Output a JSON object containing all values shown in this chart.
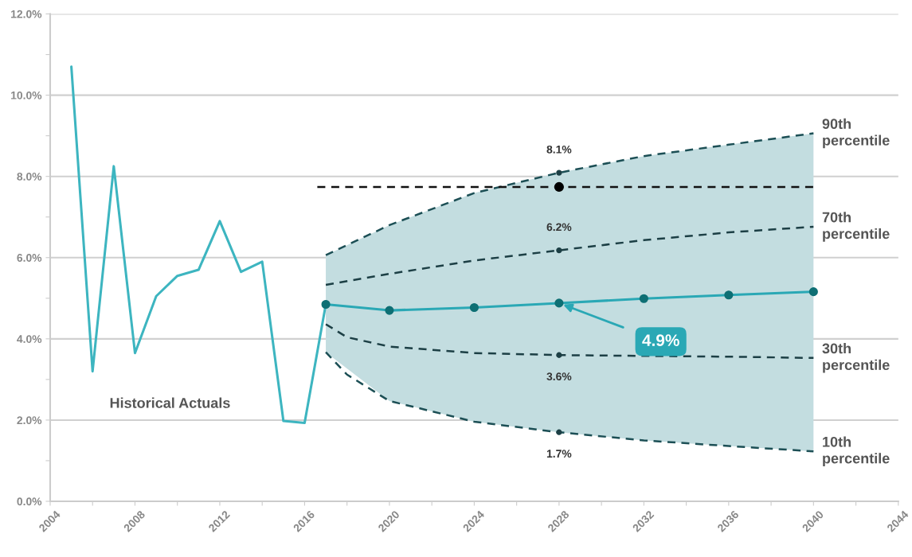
{
  "chart_data": {
    "type": "line",
    "xlim": [
      2004,
      2044
    ],
    "xticks": [
      2004,
      {
        "value": 2006,
        "label": null
      },
      2008,
      {
        "value": 2010,
        "label": null
      },
      2012,
      {
        "value": 2014,
        "label": null
      },
      2016,
      {
        "value": 2018,
        "label": null
      },
      2020,
      {
        "value": 2022,
        "label": null
      },
      2024,
      {
        "value": 2026,
        "label": null
      },
      2028,
      {
        "value": 2030,
        "label": null
      },
      2032,
      {
        "value": 2034,
        "label": null
      },
      2036,
      {
        "value": 2038,
        "label": null
      },
      2040,
      {
        "value": 2042,
        "label": null
      },
      2044
    ],
    "ylim": [
      0,
      12
    ],
    "yticks": [
      {
        "value": 0,
        "label": "0.0%"
      },
      {
        "value": 1,
        "label": null
      },
      {
        "value": 2,
        "label": "2.0%"
      },
      {
        "value": 3,
        "label": null
      },
      {
        "value": 4,
        "label": "4.0%"
      },
      {
        "value": 5,
        "label": null
      },
      {
        "value": 6,
        "label": "6.0%"
      },
      {
        "value": 7,
        "label": null
      },
      {
        "value": 8,
        "label": "8.0%"
      },
      {
        "value": 9,
        "label": null
      },
      {
        "value": 10,
        "label": "10.0%"
      },
      {
        "value": 11,
        "label": null
      },
      {
        "value": 12,
        "label": "12.0%"
      }
    ],
    "grid": "y",
    "legend": false,
    "series": [
      {
        "name": "Historical Actuals",
        "color": "#3db5c0",
        "x": [
          2005,
          2006,
          2007,
          2008,
          2009,
          2010,
          2011,
          2012,
          2013,
          2014,
          2015,
          2016,
          2017
        ],
        "values": [
          10.7,
          3.2,
          8.25,
          3.65,
          5.05,
          5.55,
          5.7,
          6.9,
          5.65,
          5.9,
          1.98,
          1.93,
          4.85
        ]
      },
      {
        "color": "#2aa8b5",
        "marker": "circle",
        "x": [
          2017,
          2020,
          2024,
          2028,
          2032,
          2036,
          2040
        ],
        "values": [
          4.85,
          4.7,
          4.77,
          4.88,
          4.99,
          5.08,
          5.16
        ],
        "lower": [
          3.67,
          2.47,
          1.96,
          1.7,
          1.5,
          1.36,
          1.23
        ],
        "upper": [
          6.06,
          6.8,
          7.59,
          8.09,
          8.5,
          8.78,
          9.06
        ],
        "value_labels": [
          null,
          null,
          null,
          "4.9%",
          null,
          null,
          null
        ]
      },
      {
        "name": "90th percentile",
        "color": "#1c4f55",
        "line_style": "dashed",
        "x": [
          2017,
          2020,
          2024,
          2028,
          2032,
          2036,
          2040
        ],
        "values": [
          6.06,
          6.8,
          7.59,
          8.09,
          8.5,
          8.78,
          9.06
        ],
        "value_labels": [
          null,
          null,
          null,
          "8.1%",
          null,
          null,
          null
        ]
      },
      {
        "name": "70th percentile",
        "color": "#1c3f45",
        "line_style": "dashed",
        "x": [
          2017,
          2020,
          2024,
          2028,
          2032,
          2036,
          2040
        ],
        "values": [
          5.33,
          5.6,
          5.93,
          6.18,
          6.43,
          6.62,
          6.76
        ],
        "value_labels": [
          null,
          null,
          null,
          "6.2%",
          null,
          null,
          null
        ]
      },
      {
        "name": "30th percentile",
        "color": "#1c3f45",
        "line_style": "dashed",
        "x": [
          2017,
          2018,
          2020,
          2024,
          2028,
          2032,
          2036,
          2040
        ],
        "values": [
          4.36,
          4.04,
          3.81,
          3.65,
          3.6,
          3.58,
          3.56,
          3.53
        ],
        "value_labels": [
          null,
          null,
          null,
          null,
          "3.6%",
          null,
          null,
          null
        ]
      },
      {
        "name": "10th percentile",
        "color": "#1c4f55",
        "line_style": "dashed",
        "x": [
          2017,
          2018,
          2020,
          2024,
          2028,
          2032,
          2036,
          2040
        ],
        "values": [
          3.67,
          3.12,
          2.47,
          1.96,
          1.7,
          1.5,
          1.36,
          1.23
        ],
        "value_labels": [
          null,
          null,
          null,
          null,
          "1.7%",
          null,
          null,
          null
        ]
      },
      {
        "color": "#111111",
        "line_style": "dashed",
        "x": [
          2016.6,
          2040
        ],
        "values": [
          7.74,
          7.74
        ]
      },
      {
        "type": "scatter",
        "color": "#000000",
        "x": [
          2028
        ],
        "values": [
          7.74
        ]
      }
    ]
  }
}
